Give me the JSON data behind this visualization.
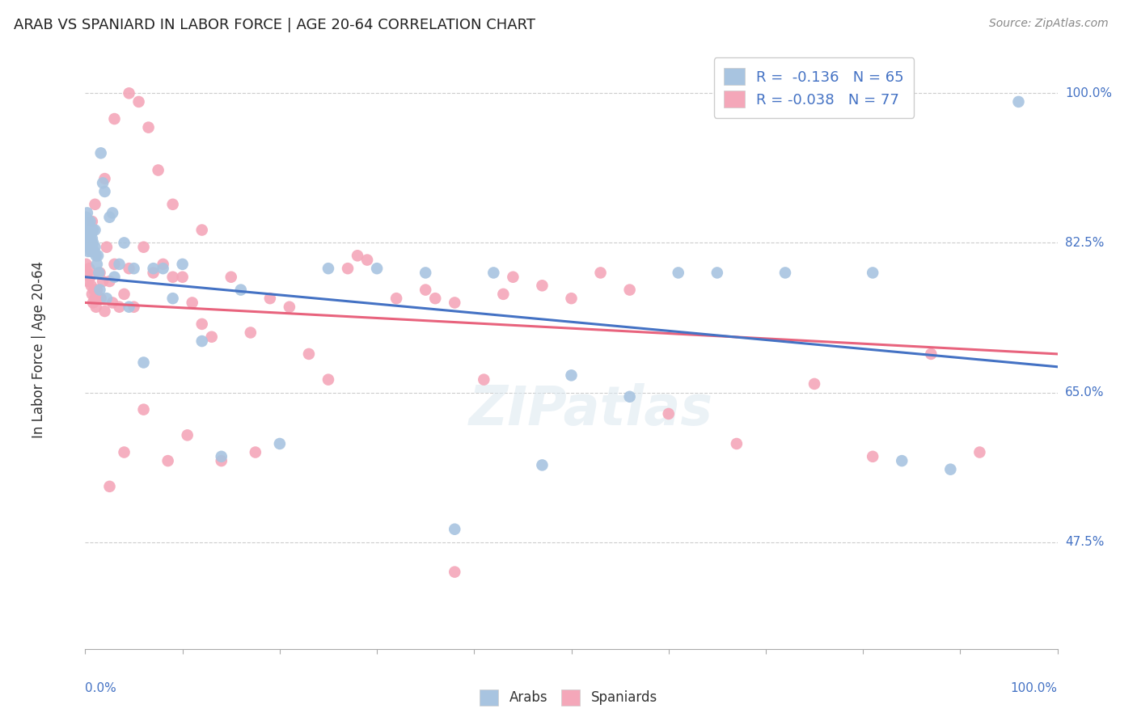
{
  "title": "ARAB VS SPANIARD IN LABOR FORCE | AGE 20-64 CORRELATION CHART",
  "source": "Source: ZipAtlas.com",
  "ylabel": "In Labor Force | Age 20-64",
  "right_ytick_values": [
    0.475,
    0.65,
    0.825,
    1.0
  ],
  "right_ytick_labels": [
    "47.5%",
    "65.0%",
    "82.5%",
    "100.0%"
  ],
  "legend_arab": "R =  -0.136   N = 65",
  "legend_spaniard": "R = -0.038   N = 77",
  "arab_color": "#a8c4e0",
  "spaniard_color": "#f4a7b9",
  "arab_line_color": "#4472c4",
  "spaniard_line_color": "#e8637d",
  "watermark": "ZIPatlas",
  "xlim": [
    0.0,
    1.0
  ],
  "ylim": [
    0.35,
    1.05
  ],
  "arab_line_x0": 0.0,
  "arab_line_y0": 0.785,
  "arab_line_x1": 1.0,
  "arab_line_y1": 0.68,
  "spaniard_line_x0": 0.0,
  "spaniard_line_y0": 0.755,
  "spaniard_line_x1": 1.0,
  "spaniard_line_y1": 0.695,
  "arab_scatter_x": [
    0.001,
    0.001,
    0.002,
    0.002,
    0.002,
    0.003,
    0.003,
    0.003,
    0.003,
    0.004,
    0.004,
    0.004,
    0.005,
    0.005,
    0.005,
    0.006,
    0.006,
    0.006,
    0.007,
    0.007,
    0.008,
    0.008,
    0.009,
    0.01,
    0.01,
    0.011,
    0.012,
    0.013,
    0.014,
    0.015,
    0.016,
    0.018,
    0.02,
    0.022,
    0.025,
    0.028,
    0.03,
    0.035,
    0.04,
    0.045,
    0.05,
    0.06,
    0.07,
    0.08,
    0.09,
    0.1,
    0.12,
    0.14,
    0.16,
    0.2,
    0.25,
    0.3,
    0.35,
    0.38,
    0.42,
    0.47,
    0.5,
    0.56,
    0.61,
    0.65,
    0.72,
    0.81,
    0.84,
    0.89,
    0.96
  ],
  "arab_scatter_y": [
    0.855,
    0.845,
    0.86,
    0.84,
    0.83,
    0.85,
    0.835,
    0.825,
    0.815,
    0.845,
    0.83,
    0.82,
    0.85,
    0.84,
    0.82,
    0.835,
    0.825,
    0.815,
    0.83,
    0.82,
    0.84,
    0.825,
    0.815,
    0.84,
    0.82,
    0.81,
    0.8,
    0.81,
    0.79,
    0.77,
    0.93,
    0.895,
    0.885,
    0.76,
    0.855,
    0.86,
    0.785,
    0.8,
    0.825,
    0.75,
    0.795,
    0.685,
    0.795,
    0.795,
    0.76,
    0.8,
    0.71,
    0.575,
    0.77,
    0.59,
    0.795,
    0.795,
    0.79,
    0.49,
    0.79,
    0.565,
    0.67,
    0.645,
    0.79,
    0.79,
    0.79,
    0.79,
    0.57,
    0.56,
    0.99
  ],
  "spaniard_scatter_x": [
    0.001,
    0.002,
    0.003,
    0.004,
    0.005,
    0.006,
    0.007,
    0.008,
    0.009,
    0.01,
    0.011,
    0.012,
    0.013,
    0.015,
    0.016,
    0.018,
    0.02,
    0.022,
    0.025,
    0.028,
    0.03,
    0.035,
    0.04,
    0.045,
    0.05,
    0.06,
    0.07,
    0.08,
    0.09,
    0.1,
    0.11,
    0.12,
    0.13,
    0.15,
    0.17,
    0.19,
    0.21,
    0.23,
    0.25,
    0.27,
    0.29,
    0.32,
    0.35,
    0.38,
    0.41,
    0.44,
    0.47,
    0.5,
    0.53,
    0.56,
    0.12,
    0.09,
    0.075,
    0.065,
    0.055,
    0.045,
    0.03,
    0.02,
    0.01,
    0.007,
    0.025,
    0.04,
    0.06,
    0.105,
    0.175,
    0.085,
    0.14,
    0.28,
    0.36,
    0.43,
    0.6,
    0.67,
    0.75,
    0.81,
    0.87,
    0.92,
    0.38
  ],
  "spaniard_scatter_y": [
    0.8,
    0.79,
    0.78,
    0.795,
    0.785,
    0.775,
    0.765,
    0.755,
    0.77,
    0.76,
    0.75,
    0.77,
    0.76,
    0.79,
    0.76,
    0.78,
    0.745,
    0.82,
    0.78,
    0.755,
    0.8,
    0.75,
    0.765,
    0.795,
    0.75,
    0.82,
    0.79,
    0.8,
    0.785,
    0.785,
    0.755,
    0.73,
    0.715,
    0.785,
    0.72,
    0.76,
    0.75,
    0.695,
    0.665,
    0.795,
    0.805,
    0.76,
    0.77,
    0.755,
    0.665,
    0.785,
    0.775,
    0.76,
    0.79,
    0.77,
    0.84,
    0.87,
    0.91,
    0.96,
    0.99,
    1.0,
    0.97,
    0.9,
    0.87,
    0.85,
    0.54,
    0.58,
    0.63,
    0.6,
    0.58,
    0.57,
    0.57,
    0.81,
    0.76,
    0.765,
    0.625,
    0.59,
    0.66,
    0.575,
    0.695,
    0.58,
    0.44
  ],
  "grid_yticks": [
    0.475,
    0.65,
    0.825,
    1.0
  ],
  "background_color": "#ffffff"
}
